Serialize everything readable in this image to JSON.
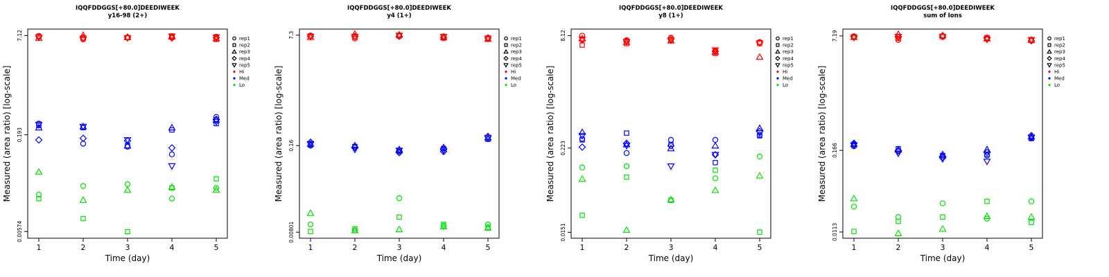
{
  "chart_data": [
    {
      "type": "scatter",
      "title": "IQQFDDGGS[+80.0]DEEDIWEEK",
      "subtitle": "y16-98 (2+)",
      "xlabel": "Time (day)",
      "ylabel": "Measured (area ratio) [log-scale]",
      "y_scale": "log",
      "ylim": [
        0.0045,
        9.0
      ],
      "ytick_labels": [
        "0.00574",
        "0.193",
        "7.12"
      ],
      "yticks": [
        0.00574,
        0.193,
        7.12
      ],
      "x": [
        1,
        2,
        3,
        4,
        5
      ],
      "series": [
        {
          "name": "rep1",
          "level": "Hi",
          "values": [
            7.0,
            6.2,
            6.6,
            6.7,
            6.8
          ]
        },
        {
          "name": "rep2",
          "level": "Hi",
          "values": [
            6.8,
            6.5,
            6.6,
            7.0,
            6.2
          ]
        },
        {
          "name": "rep3",
          "level": "Hi",
          "values": [
            6.5,
            7.2,
            6.7,
            6.8,
            6.4
          ]
        },
        {
          "name": "rep4",
          "level": "Hi",
          "values": [
            6.9,
            6.6,
            6.7,
            6.5,
            6.6
          ]
        },
        {
          "name": "rep5",
          "level": "Hi",
          "values": [
            6.7,
            6.4,
            6.5,
            6.9,
            6.7
          ]
        },
        {
          "name": "rep1",
          "level": "Med",
          "values": [
            0.29,
            0.14,
            0.125,
            0.095,
            0.37
          ]
        },
        {
          "name": "rep2",
          "level": "Med",
          "values": [
            0.27,
            0.25,
            0.13,
            0.23,
            0.29
          ]
        },
        {
          "name": "rep3",
          "level": "Med",
          "values": [
            0.25,
            0.26,
            0.13,
            0.25,
            0.33
          ]
        },
        {
          "name": "rep4",
          "level": "Med",
          "values": [
            0.16,
            0.17,
            0.155,
            0.12,
            0.34
          ]
        },
        {
          "name": "rep5",
          "level": "Med",
          "values": [
            0.28,
            0.26,
            0.16,
            0.062,
            0.31
          ]
        },
        {
          "name": "rep1",
          "level": "Lo",
          "values": [
            0.022,
            0.03,
            0.032,
            0.019,
            0.028
          ]
        },
        {
          "name": "rep2",
          "level": "Lo",
          "values": [
            0.019,
            0.0092,
            0.0057,
            0.028,
            0.039
          ]
        },
        {
          "name": "rep3",
          "level": "Lo",
          "values": [
            0.05,
            0.018,
            0.026,
            0.029,
            0.026
          ]
        }
      ]
    },
    {
      "type": "scatter",
      "title": "IQQFDDGGS[+80.0]DEEDIWEEK",
      "subtitle": "y4 (1+)",
      "xlabel": "Time (day)",
      "ylabel": "Measured (area ratio) [log-scale]",
      "y_scale": "log",
      "ylim": [
        0.0065,
        9.0
      ],
      "ytick_labels": [
        "0.00801",
        "0.16",
        "7.3"
      ],
      "yticks": [
        0.00801,
        0.16,
        7.3
      ],
      "x": [
        1,
        2,
        3,
        4,
        5
      ],
      "series": [
        {
          "name": "rep1",
          "level": "Hi",
          "values": [
            7.2,
            6.5,
            7.3,
            7.0,
            6.7
          ]
        },
        {
          "name": "rep2",
          "level": "Hi",
          "values": [
            7.1,
            6.8,
            7.1,
            6.6,
            6.5
          ]
        },
        {
          "name": "rep3",
          "level": "Hi",
          "values": [
            6.8,
            7.6,
            7.4,
            6.8,
            6.4
          ]
        },
        {
          "name": "rep4",
          "level": "Hi",
          "values": [
            7.0,
            7.0,
            7.0,
            6.7,
            6.6
          ]
        },
        {
          "name": "rep5",
          "level": "Hi",
          "values": [
            6.9,
            6.9,
            7.2,
            6.9,
            6.5
          ]
        },
        {
          "name": "rep1",
          "level": "Med",
          "values": [
            0.16,
            0.15,
            0.13,
            0.14,
            0.2
          ]
        },
        {
          "name": "rep2",
          "level": "Med",
          "values": [
            0.165,
            0.155,
            0.135,
            0.145,
            0.2
          ]
        },
        {
          "name": "rep3",
          "level": "Med",
          "values": [
            0.17,
            0.16,
            0.14,
            0.15,
            0.21
          ]
        },
        {
          "name": "rep4",
          "level": "Med",
          "values": [
            0.18,
            0.15,
            0.125,
            0.13,
            0.22
          ]
        },
        {
          "name": "rep5",
          "level": "Med",
          "values": [
            0.17,
            0.14,
            0.135,
            0.135,
            0.21
          ]
        },
        {
          "name": "rep1",
          "level": "Lo",
          "values": [
            0.0105,
            0.0085,
            0.026,
            0.01,
            0.0105
          ]
        },
        {
          "name": "rep2",
          "level": "Lo",
          "values": [
            0.0082,
            0.009,
            0.0135,
            0.0105,
            0.0095
          ]
        },
        {
          "name": "rep3",
          "level": "Lo",
          "values": [
            0.0155,
            0.0085,
            0.0088,
            0.0097,
            0.0093
          ]
        }
      ]
    },
    {
      "type": "scatter",
      "title": "IQQFDDGGS[+80.0]DEEDIWEEK",
      "subtitle": "y8 (1+)",
      "xlabel": "Time (day)",
      "ylabel": "Measured (area ratio) [log-scale]",
      "y_scale": "log",
      "ylim": [
        0.0125,
        10.0
      ],
      "ytick_labels": [
        "0.0151",
        "0.223",
        "8.12"
      ],
      "yticks": [
        0.0151,
        0.223,
        8.12
      ],
      "x": [
        1,
        2,
        3,
        4,
        5
      ],
      "series": [
        {
          "name": "rep1",
          "level": "Hi",
          "values": [
            8.1,
            7.0,
            7.6,
            5.0,
            6.6
          ]
        },
        {
          "name": "rep2",
          "level": "Hi",
          "values": [
            6.0,
            6.3,
            7.1,
            4.6,
            6.3
          ]
        },
        {
          "name": "rep3",
          "level": "Hi",
          "values": [
            7.4,
            6.6,
            6.9,
            4.8,
            4.1
          ]
        },
        {
          "name": "rep4",
          "level": "Hi",
          "values": [
            7.0,
            6.8,
            7.3,
            4.9,
            6.5
          ]
        },
        {
          "name": "rep5",
          "level": "Hi",
          "values": [
            7.2,
            6.7,
            7.0,
            5.1,
            6.4
          ]
        },
        {
          "name": "rep1",
          "level": "Med",
          "values": [
            0.3,
            0.19,
            0.29,
            0.29,
            0.34
          ]
        },
        {
          "name": "rep2",
          "level": "Med",
          "values": [
            0.29,
            0.36,
            0.25,
            0.14,
            0.33
          ]
        },
        {
          "name": "rep3",
          "level": "Med",
          "values": [
            0.37,
            0.25,
            0.22,
            0.24,
            0.42
          ]
        },
        {
          "name": "rep4",
          "level": "Med",
          "values": [
            0.23,
            0.26,
            0.24,
            0.18,
            0.38
          ]
        },
        {
          "name": "rep5",
          "level": "Med",
          "values": [
            0.33,
            0.24,
            0.125,
            0.18,
            0.36
          ]
        },
        {
          "name": "rep1",
          "level": "Lo",
          "values": [
            0.12,
            0.125,
            0.042,
            0.085,
            0.17
          ]
        },
        {
          "name": "rep2",
          "level": "Lo",
          "values": [
            0.026,
            0.088,
            0.042,
            0.11,
            0.0152
          ]
        },
        {
          "name": "rep3",
          "level": "Lo",
          "values": [
            0.083,
            0.0162,
            0.043,
            0.058,
            0.092
          ]
        }
      ]
    },
    {
      "type": "scatter",
      "title": "IQQFDDGGS[+80.0]DEEDIWEEK",
      "subtitle": "sum of Ions",
      "xlabel": "Time (day)",
      "ylabel": "Measured (area ratio) [log-scale]",
      "y_scale": "log",
      "ylim": [
        0.0092,
        9.0
      ],
      "ytick_labels": [
        "0.0113",
        "0.166",
        "7.19"
      ],
      "yticks": [
        0.0113,
        0.166,
        7.19
      ],
      "x": [
        1,
        2,
        3,
        4,
        5
      ],
      "series": [
        {
          "name": "rep1",
          "level": "Hi",
          "values": [
            7.1,
            6.3,
            7.2,
            6.5,
            6.2
          ]
        },
        {
          "name": "rep2",
          "level": "Hi",
          "values": [
            7.0,
            6.6,
            7.0,
            6.8,
            6.2
          ]
        },
        {
          "name": "rep3",
          "level": "Hi",
          "values": [
            6.9,
            7.6,
            7.3,
            6.6,
            6.3
          ]
        },
        {
          "name": "rep4",
          "level": "Hi",
          "values": [
            7.0,
            6.9,
            7.1,
            6.7,
            6.1
          ]
        },
        {
          "name": "rep5",
          "level": "Hi",
          "values": [
            6.8,
            7.0,
            7.0,
            6.4,
            6.3
          ]
        },
        {
          "name": "rep1",
          "level": "Med",
          "values": [
            0.19,
            0.16,
            0.135,
            0.14,
            0.25
          ]
        },
        {
          "name": "rep2",
          "level": "Med",
          "values": [
            0.2,
            0.175,
            0.14,
            0.145,
            0.245
          ]
        },
        {
          "name": "rep3",
          "level": "Med",
          "values": [
            0.205,
            0.17,
            0.145,
            0.17,
            0.26
          ]
        },
        {
          "name": "rep4",
          "level": "Med",
          "values": [
            0.21,
            0.165,
            0.13,
            0.155,
            0.27
          ]
        },
        {
          "name": "rep5",
          "level": "Med",
          "values": [
            0.195,
            0.15,
            0.125,
            0.115,
            0.255
          ]
        },
        {
          "name": "rep1",
          "level": "Lo",
          "values": [
            0.026,
            0.0185,
            0.029,
            0.0175,
            0.031
          ]
        },
        {
          "name": "rep2",
          "level": "Lo",
          "values": [
            0.0115,
            0.016,
            0.0185,
            0.031,
            0.0155
          ]
        },
        {
          "name": "rep3",
          "level": "Lo",
          "values": [
            0.034,
            0.0108,
            0.0125,
            0.019,
            0.0185
          ]
        }
      ]
    }
  ],
  "legend": {
    "position": "right-outside",
    "entries": [
      {
        "label": "rep1",
        "marker": "circle",
        "color": "#000000"
      },
      {
        "label": "rep2",
        "marker": "square",
        "color": "#000000"
      },
      {
        "label": "rep3",
        "marker": "triangle-up",
        "color": "#000000"
      },
      {
        "label": "rep4",
        "marker": "diamond",
        "color": "#000000"
      },
      {
        "label": "rep5",
        "marker": "triangle-down",
        "color": "#000000"
      },
      {
        "label": "Hi",
        "marker": "dot",
        "color": "#ff0000"
      },
      {
        "label": "Med",
        "marker": "dot",
        "color": "#0000ff"
      },
      {
        "label": "Lo",
        "marker": "dot",
        "color": "#00e000"
      }
    ]
  },
  "colors": {
    "Hi": "#ff0000",
    "Med": "#0000ff",
    "Lo": "#00e000"
  }
}
